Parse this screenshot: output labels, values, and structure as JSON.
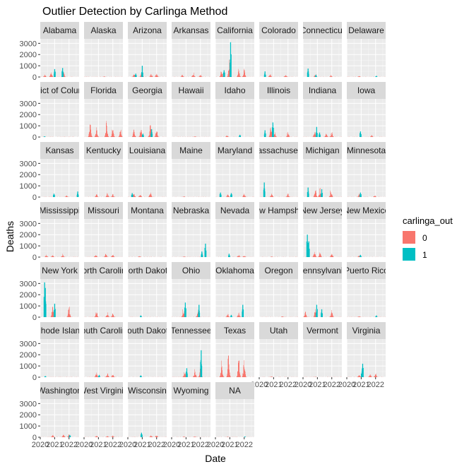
{
  "chart_data": {
    "type": "bar",
    "title": "Outlier Detection by Carlinga Method",
    "xlabel": "Date",
    "ylabel": "Deaths",
    "y_ticks": [
      0,
      1000,
      2000,
      3000
    ],
    "y_tick_labels": [
      "0",
      "1000",
      "2000",
      "3000"
    ],
    "ylim": [
      0,
      3400
    ],
    "x_ticks": [
      2020,
      2021,
      2022
    ],
    "x_tick_labels": [
      "2020",
      "2021",
      "2022"
    ],
    "xlim": [
      2020.0,
      2022.7
    ],
    "grid": true,
    "legend": {
      "title": "carlinga_out",
      "position": "right",
      "entries": [
        {
          "label": "0",
          "color": "#F8766D"
        },
        {
          "label": "1",
          "color": "#00BFC4"
        }
      ]
    },
    "series_colors": {
      "0": "#F8766D",
      "1": "#00BFC4"
    },
    "panels": [
      {
        "name": "Alabama",
        "outlier_peaks": [
          [
            2021.0,
            700
          ],
          [
            2021.55,
            800
          ]
        ],
        "normal_peaks": [
          [
            2020.5,
            200
          ],
          [
            2020.9,
            500
          ],
          [
            2021.7,
            500
          ]
        ]
      },
      {
        "name": "Alaska",
        "outlier_peaks": [],
        "normal_peaks": [
          [
            2021.5,
            40
          ]
        ]
      },
      {
        "name": "Arizona",
        "outlier_peaks": [
          [
            2021.0,
            1000
          ],
          [
            2020.55,
            300
          ]
        ],
        "normal_peaks": [
          [
            2020.6,
            250
          ],
          [
            2021.1,
            600
          ],
          [
            2021.7,
            300
          ],
          [
            2022.05,
            300
          ]
        ]
      },
      {
        "name": "Arkansas",
        "outlier_peaks": [],
        "normal_peaks": [
          [
            2020.9,
            250
          ],
          [
            2021.6,
            400
          ],
          [
            2022.05,
            200
          ]
        ]
      },
      {
        "name": "California",
        "outlier_peaks": [
          [
            2021.05,
            3100
          ],
          [
            2020.6,
            600
          ]
        ],
        "normal_peaks": [
          [
            2020.6,
            700
          ],
          [
            2021.1,
            1800
          ],
          [
            2021.7,
            700
          ],
          [
            2022.05,
            800
          ]
        ]
      },
      {
        "name": "Colorado",
        "outlier_peaks": [
          [
            2020.4,
            500
          ]
        ],
        "normal_peaks": [
          [
            2020.9,
            300
          ],
          [
            2021.9,
            250
          ]
        ]
      },
      {
        "name": "Connecticut",
        "outlier_peaks": [
          [
            2020.35,
            750
          ],
          [
            2020.9,
            200
          ]
        ],
        "normal_peaks": [
          [
            2021.0,
            250
          ],
          [
            2022.0,
            150
          ]
        ]
      },
      {
        "name": "Delaware",
        "outlier_peaks": [
          [
            2022.05,
            100
          ]
        ],
        "normal_peaks": [
          [
            2021.0,
            80
          ]
        ]
      },
      {
        "name": "District of Columbia",
        "outlier_peaks": [
          [
            2020.3,
            60
          ]
        ],
        "normal_peaks": []
      },
      {
        "name": "Florida",
        "outlier_peaks": [],
        "normal_peaks": [
          [
            2020.6,
            1400
          ],
          [
            2021.0,
            900
          ],
          [
            2021.65,
            1500
          ],
          [
            2022.05,
            900
          ],
          [
            2022.55,
            700
          ]
        ]
      },
      {
        "name": "Georgia",
        "outlier_peaks": [
          [
            2021.05,
            300
          ],
          [
            2021.65,
            700
          ]
        ],
        "normal_peaks": [
          [
            2020.6,
            700
          ],
          [
            2021.05,
            900
          ],
          [
            2021.65,
            1200
          ],
          [
            2022.05,
            700
          ]
        ]
      },
      {
        "name": "Hawaii",
        "outlier_peaks": [],
        "normal_peaks": [
          [
            2021.7,
            60
          ]
        ]
      },
      {
        "name": "Idaho",
        "outlier_peaks": [
          [
            2021.7,
            200
          ]
        ],
        "normal_peaks": [
          [
            2020.95,
            150
          ]
        ]
      },
      {
        "name": "Illinois",
        "outlier_peaks": [
          [
            2020.4,
            600
          ],
          [
            2020.95,
            1300
          ]
        ],
        "normal_peaks": [
          [
            2020.95,
            900
          ],
          [
            2021.2,
            400
          ],
          [
            2022.05,
            500
          ]
        ]
      },
      {
        "name": "Indiana",
        "outlier_peaks": [
          [
            2020.95,
            900
          ],
          [
            2021.15,
            400
          ]
        ],
        "normal_peaks": [
          [
            2020.95,
            600
          ],
          [
            2021.7,
            400
          ],
          [
            2022.05,
            500
          ]
        ]
      },
      {
        "name": "Iowa",
        "outlier_peaks": [
          [
            2020.95,
            500
          ]
        ],
        "normal_peaks": [
          [
            2021.8,
            150
          ]
        ]
      },
      {
        "name": "Kansas",
        "outlier_peaks": [
          [
            2020.95,
            300
          ],
          [
            2022.6,
            500
          ]
        ],
        "normal_peaks": [
          [
            2021.9,
            150
          ]
        ]
      },
      {
        "name": "Kentucky",
        "outlier_peaks": [],
        "normal_peaks": [
          [
            2021.0,
            250
          ],
          [
            2021.7,
            350
          ],
          [
            2022.05,
            250
          ]
        ]
      },
      {
        "name": "Louisiana",
        "outlier_peaks": [
          [
            2020.3,
            350
          ]
        ],
        "normal_peaks": [
          [
            2020.6,
            300
          ],
          [
            2021.0,
            300
          ],
          [
            2021.65,
            400
          ]
        ]
      },
      {
        "name": "Maine",
        "outlier_peaks": [],
        "normal_peaks": [
          [
            2021.0,
            50
          ]
        ]
      },
      {
        "name": "Maryland",
        "outlier_peaks": [
          [
            2020.35,
            400
          ],
          [
            2021.1,
            350
          ]
        ],
        "normal_peaks": [
          [
            2021.0,
            250
          ],
          [
            2022.05,
            300
          ]
        ]
      },
      {
        "name": "Massachusetts",
        "outlier_peaks": [
          [
            2020.35,
            1300
          ]
        ],
        "normal_peaks": [
          [
            2021.0,
            400
          ],
          [
            2022.05,
            300
          ]
        ]
      },
      {
        "name": "Michigan",
        "outlier_peaks": [
          [
            2020.35,
            850
          ],
          [
            2021.3,
            700
          ]
        ],
        "normal_peaks": [
          [
            2021.0,
            700
          ],
          [
            2021.3,
            800
          ],
          [
            2022.0,
            700
          ]
        ]
      },
      {
        "name": "Minnesota",
        "outlier_peaks": [
          [
            2020.95,
            400
          ]
        ],
        "normal_peaks": [
          [
            2021.0,
            300
          ],
          [
            2022.0,
            150
          ]
        ]
      },
      {
        "name": "Mississippi",
        "outlier_peaks": [],
        "normal_peaks": [
          [
            2020.6,
            200
          ],
          [
            2021.0,
            200
          ],
          [
            2021.65,
            300
          ]
        ]
      },
      {
        "name": "Missouri",
        "outlier_peaks": [],
        "normal_peaks": [
          [
            2020.95,
            300
          ],
          [
            2021.6,
            300
          ],
          [
            2022.05,
            250
          ]
        ]
      },
      {
        "name": "Montana",
        "outlier_peaks": [],
        "normal_peaks": [
          [
            2020.95,
            80
          ]
        ]
      },
      {
        "name": "Nebraska",
        "outlier_peaks": [
          [
            2022.35,
            1200
          ],
          [
            2022.1,
            500
          ]
        ],
        "normal_peaks": [
          [
            2021.0,
            60
          ]
        ]
      },
      {
        "name": "Nevada",
        "outlier_peaks": [
          [
            2020.95,
            300
          ]
        ],
        "normal_peaks": [
          [
            2021.7,
            200
          ],
          [
            2022.05,
            150
          ]
        ]
      },
      {
        "name": "New Hampshire",
        "outlier_peaks": [],
        "normal_peaks": [
          [
            2021.0,
            60
          ]
        ]
      },
      {
        "name": "New Jersey",
        "outlier_peaks": [
          [
            2020.3,
            2000
          ],
          [
            2020.4,
            1400
          ]
        ],
        "normal_peaks": [
          [
            2020.95,
            600
          ],
          [
            2021.3,
            500
          ],
          [
            2022.05,
            400
          ]
        ]
      },
      {
        "name": "New Mexico",
        "outlier_peaks": [
          [
            2020.95,
            200
          ]
        ],
        "normal_peaks": [
          [
            2021.0,
            150
          ]
        ]
      },
      {
        "name": "New York",
        "outlier_peaks": [
          [
            2020.3,
            3100
          ],
          [
            2020.35,
            2600
          ],
          [
            2021.0,
            1200
          ]
        ],
        "normal_peaks": [
          [
            2021.0,
            1000
          ],
          [
            2022.05,
            1000
          ]
        ]
      },
      {
        "name": "North Carolina",
        "outlier_peaks": [],
        "normal_peaks": [
          [
            2021.0,
            500
          ],
          [
            2021.7,
            400
          ],
          [
            2022.05,
            350
          ]
        ]
      },
      {
        "name": "North Dakota",
        "outlier_peaks": [
          [
            2020.9,
            150
          ]
        ],
        "normal_peaks": []
      },
      {
        "name": "Ohio",
        "outlier_peaks": [
          [
            2020.95,
            1300
          ],
          [
            2021.9,
            1100
          ]
        ],
        "normal_peaks": [
          [
            2020.95,
            800
          ],
          [
            2021.9,
            600
          ]
        ]
      },
      {
        "name": "Oklahoma",
        "outlier_peaks": [
          [
            2021.9,
            1100
          ],
          [
            2021.1,
            200
          ]
        ],
        "normal_peaks": [
          [
            2021.0,
            300
          ],
          [
            2021.7,
            400
          ]
        ]
      },
      {
        "name": "Oregon",
        "outlier_peaks": [],
        "normal_peaks": [
          [
            2021.7,
            80
          ]
        ]
      },
      {
        "name": "Pennsylvania",
        "outlier_peaks": [
          [
            2020.95,
            1100
          ],
          [
            2021.3,
            700
          ]
        ],
        "normal_peaks": [
          [
            2020.35,
            600
          ],
          [
            2021.0,
            900
          ],
          [
            2022.05,
            700
          ]
        ]
      },
      {
        "name": "Puerto Rico",
        "outlier_peaks": [
          [
            2022.05,
            150
          ]
        ],
        "normal_peaks": [
          [
            2021.0,
            80
          ]
        ]
      },
      {
        "name": "Rhode Island",
        "outlier_peaks": [
          [
            2020.35,
            100
          ]
        ],
        "normal_peaks": []
      },
      {
        "name": "South Carolina",
        "outlier_peaks": [
          [
            2021.05,
            200
          ]
        ],
        "normal_peaks": [
          [
            2021.0,
            400
          ],
          [
            2021.7,
            400
          ],
          [
            2022.05,
            300
          ]
        ]
      },
      {
        "name": "South Dakota",
        "outlier_peaks": [
          [
            2020.9,
            150
          ]
        ],
        "normal_peaks": []
      },
      {
        "name": "Tennessee",
        "outlier_peaks": [
          [
            2021.05,
            800
          ],
          [
            2022.05,
            2400
          ]
        ],
        "normal_peaks": [
          [
            2021.05,
            600
          ],
          [
            2021.7,
            700
          ],
          [
            2022.05,
            900
          ]
        ]
      },
      {
        "name": "Texas",
        "outlier_peaks": [],
        "normal_peaks": [
          [
            2020.6,
            1500
          ],
          [
            2021.05,
            2300
          ],
          [
            2021.7,
            2000
          ],
          [
            2022.05,
            1600
          ]
        ]
      },
      {
        "name": "Utah",
        "outlier_peaks": [],
        "normal_peaks": [
          [
            2021.0,
            60
          ]
        ]
      },
      {
        "name": "Vermont",
        "outlier_peaks": [],
        "normal_peaks": [
          [
            2021.0,
            20
          ]
        ]
      },
      {
        "name": "Virginia",
        "outlier_peaks": [
          [
            2021.1,
            1200
          ],
          [
            2021.05,
            500
          ]
        ],
        "normal_peaks": [
          [
            2021.0,
            300
          ],
          [
            2021.7,
            300
          ],
          [
            2022.05,
            350
          ]
        ]
      },
      {
        "name": "Washington",
        "outlier_peaks": [
          [
            2022.05,
            200
          ]
        ],
        "normal_peaks": [
          [
            2021.0,
            200
          ],
          [
            2021.7,
            250
          ],
          [
            2022.05,
            250
          ]
        ]
      },
      {
        "name": "West Virginia",
        "outlier_peaks": [],
        "normal_peaks": [
          [
            2021.0,
            150
          ],
          [
            2021.7,
            150
          ],
          [
            2022.05,
            150
          ]
        ]
      },
      {
        "name": "Wisconsin",
        "outlier_peaks": [
          [
            2020.95,
            400
          ]
        ],
        "normal_peaks": [
          [
            2021.7,
            200
          ],
          [
            2022.05,
            200
          ]
        ]
      },
      {
        "name": "Wyoming",
        "outlier_peaks": [],
        "normal_peaks": [
          [
            2021.0,
            60
          ],
          [
            2021.7,
            60
          ]
        ]
      },
      {
        "name": "NA",
        "outlier_peaks": [
          [
            2022.05,
            60
          ]
        ],
        "normal_peaks": [
          [
            2021.0,
            40
          ]
        ]
      }
    ]
  }
}
